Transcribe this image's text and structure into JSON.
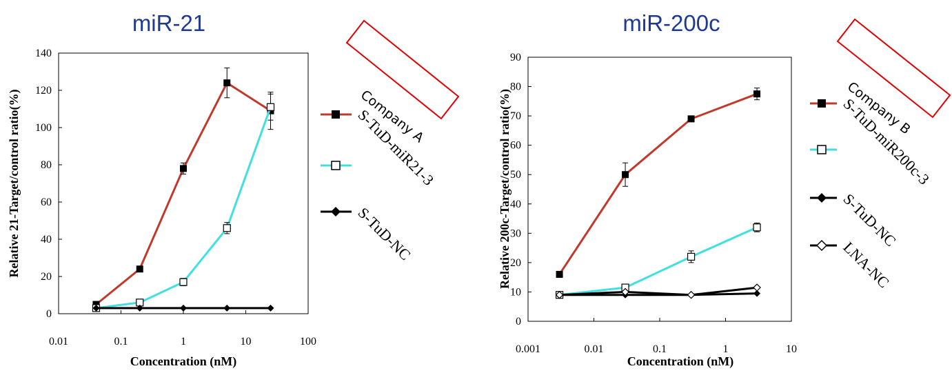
{
  "colors": {
    "red": "#c0392b",
    "cyan": "#40e0e0",
    "black": "#000000",
    "title": "#1f3a93",
    "box": "#e00000"
  },
  "overlay": {
    "company_a": "Company A",
    "company_b": "Company B"
  },
  "chart_data": [
    {
      "type": "line",
      "title": "miR-21",
      "xlabel": "Concentration (nM)",
      "ylabel": "Relative 21-Target/control ratio(%)",
      "xscale": "log",
      "xlim": [
        0.01,
        100
      ],
      "ylim": [
        0,
        140
      ],
      "xticks": [
        0.01,
        0.1,
        1,
        10,
        100
      ],
      "xtick_labels": [
        "0.01",
        "0.1",
        "1",
        "10",
        "100"
      ],
      "yticks": [
        0,
        20,
        40,
        60,
        80,
        100,
        120,
        140
      ],
      "ytick_labels": [
        "0",
        "20",
        "40",
        "60",
        "80",
        "100",
        "120",
        "140"
      ],
      "legend_position": "right",
      "series": [
        {
          "name": "S-TuD-miR21-3",
          "color": "#c0392b",
          "marker": "filled-square",
          "x": [
            0.04,
            0.2,
            1,
            5,
            25
          ],
          "y": [
            5,
            24,
            78,
            124,
            109
          ],
          "err": [
            1,
            1,
            3,
            8,
            10
          ]
        },
        {
          "name": "",
          "color": "#40e0e0",
          "marker": "open-square",
          "x": [
            0.04,
            0.2,
            1,
            5,
            25
          ],
          "y": [
            3,
            6,
            17,
            46,
            111
          ],
          "err": [
            1,
            1,
            2,
            3,
            7
          ]
        },
        {
          "name": "S-TuD-NC",
          "color": "#000000",
          "marker": "filled-diamond",
          "x": [
            0.04,
            0.2,
            1,
            5,
            25
          ],
          "y": [
            3,
            3,
            3,
            3,
            3
          ],
          "err": [
            0,
            0,
            0,
            0,
            0
          ]
        }
      ]
    },
    {
      "type": "line",
      "title": "miR-200c",
      "xlabel": "Concentration (nM)",
      "ylabel": "Relative 200c-Target/control ratio(%)",
      "xscale": "log",
      "xlim": [
        0.001,
        10
      ],
      "ylim": [
        0,
        90
      ],
      "xticks": [
        0.001,
        0.01,
        0.1,
        1,
        10
      ],
      "xtick_labels": [
        "0.001",
        "0.01",
        "0.1",
        "1",
        "10"
      ],
      "yticks": [
        0,
        10,
        20,
        30,
        40,
        50,
        60,
        70,
        80,
        90
      ],
      "ytick_labels": [
        "0",
        "10",
        "20",
        "30",
        "40",
        "50",
        "60",
        "70",
        "80",
        "90"
      ],
      "legend_position": "right",
      "series": [
        {
          "name": "S-TuD-miR200c-3",
          "color": "#c0392b",
          "marker": "filled-square",
          "x": [
            0.003,
            0.03,
            0.3,
            3
          ],
          "y": [
            16,
            50,
            69,
            77.5
          ],
          "err": [
            1,
            4,
            1,
            2
          ]
        },
        {
          "name": "",
          "color": "#40e0e0",
          "marker": "open-square",
          "x": [
            0.003,
            0.03,
            0.3,
            3
          ],
          "y": [
            9,
            11.5,
            22,
            32
          ],
          "err": [
            0.5,
            1,
            2,
            1.5
          ]
        },
        {
          "name": "S-TuD-NC",
          "color": "#000000",
          "marker": "filled-diamond",
          "x": [
            0.003,
            0.03,
            0.3,
            3
          ],
          "y": [
            9,
            9,
            9,
            9.5
          ],
          "err": [
            0,
            0,
            0,
            0
          ]
        },
        {
          "name": "LNA-NC",
          "color": "#000000",
          "marker": "open-diamond",
          "x": [
            0.003,
            0.03,
            0.3,
            3
          ],
          "y": [
            9,
            10,
            9,
            11.5
          ],
          "err": [
            0,
            0,
            0,
            0
          ]
        }
      ]
    }
  ]
}
